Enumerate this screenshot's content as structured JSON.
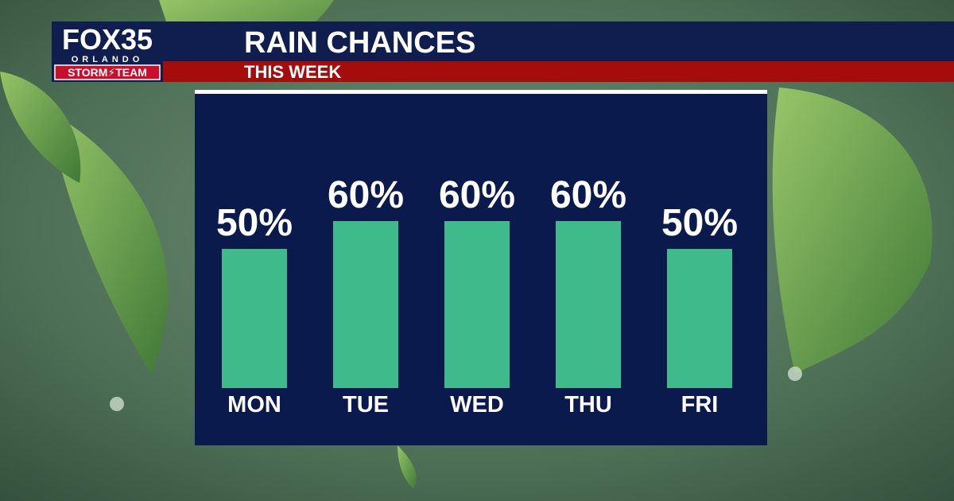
{
  "brand": {
    "name": "FOX35",
    "city": "ORLANDO",
    "team": "STORM⚡TEAM"
  },
  "chart_data": {
    "type": "bar",
    "title": "RAIN CHANCES",
    "subtitle": "THIS WEEK",
    "categories": [
      "MON",
      "TUE",
      "WED",
      "THU",
      "FRI"
    ],
    "values": [
      50,
      60,
      60,
      60,
      50
    ],
    "value_labels": [
      "50%",
      "60%",
      "60%",
      "60%",
      "50%"
    ],
    "color": "#3fbb8b"
  }
}
